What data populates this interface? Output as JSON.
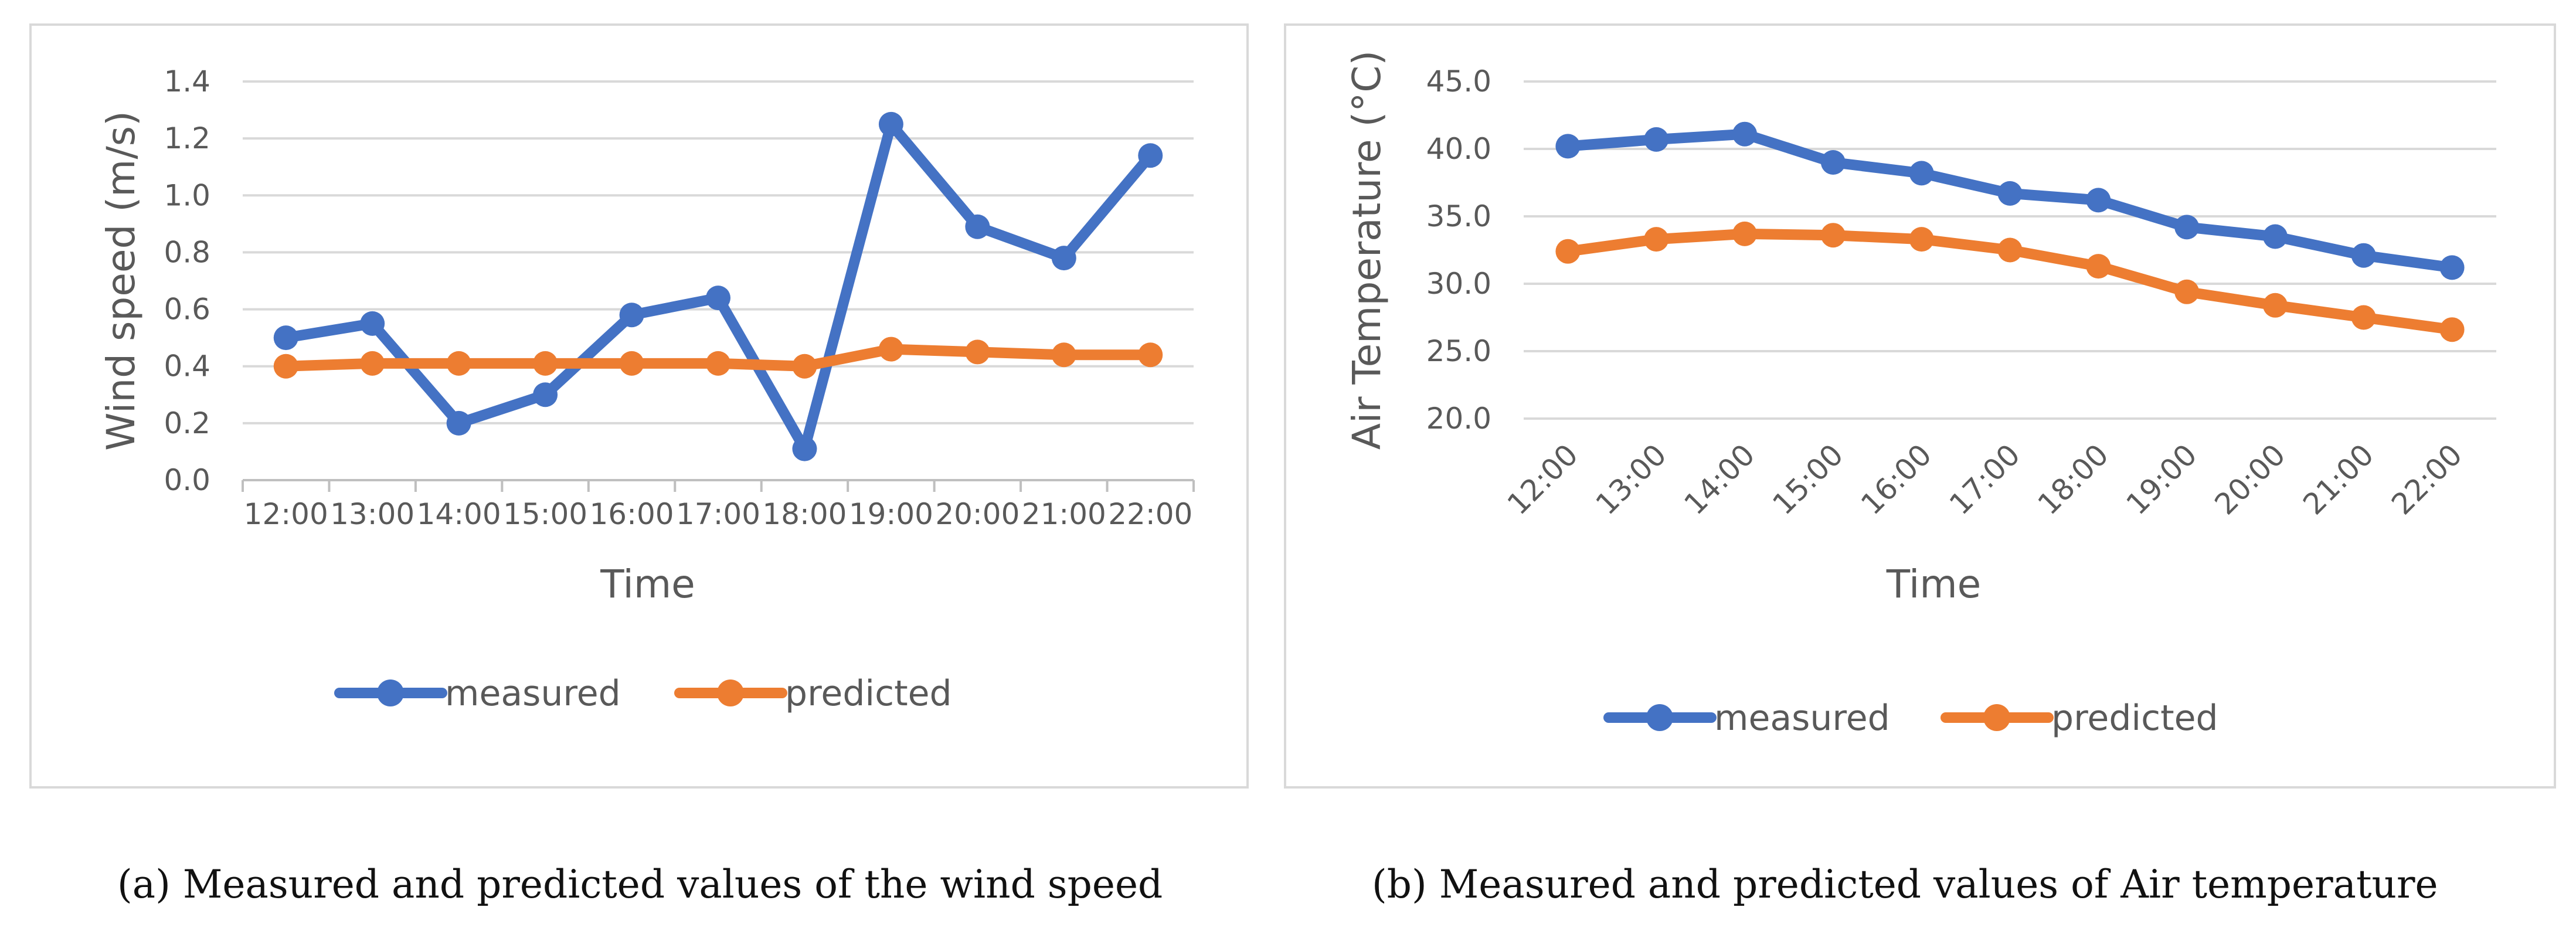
{
  "chart_data": [
    {
      "type": "line",
      "title": "",
      "xlabel": "Time",
      "ylabel": "Wind speed (m/s)",
      "categories": [
        "12:00",
        "13:00",
        "14:00",
        "15:00",
        "16:00",
        "17:00",
        "18:00",
        "19:00",
        "20:00",
        "21:00",
        "22:00"
      ],
      "ylim": [
        0,
        1.4
      ],
      "yticks": [
        "0.0",
        "0.2",
        "0.4",
        "0.6",
        "0.8",
        "1.0",
        "1.2",
        "1.4"
      ],
      "grid": true,
      "legend_position": "bottom",
      "series": [
        {
          "name": "measured",
          "color": "#4472C4",
          "values": [
            0.5,
            0.55,
            0.2,
            0.3,
            0.58,
            0.64,
            0.11,
            1.25,
            0.89,
            0.78,
            1.14
          ]
        },
        {
          "name": "predicted",
          "color": "#ED7D31",
          "values": [
            0.4,
            0.41,
            0.41,
            0.41,
            0.41,
            0.41,
            0.4,
            0.46,
            0.45,
            0.44,
            0.44
          ]
        }
      ]
    },
    {
      "type": "line",
      "title": "",
      "xlabel": "Time",
      "ylabel": "Air Temperature (°C)",
      "categories": [
        "12:00",
        "13:00",
        "14:00",
        "15:00",
        "16:00",
        "17:00",
        "18:00",
        "19:00",
        "20:00",
        "21:00",
        "22:00"
      ],
      "ylim": [
        20,
        45
      ],
      "yticks": [
        "20.0",
        "25.0",
        "30.0",
        "35.0",
        "40.0",
        "45.0"
      ],
      "grid": true,
      "legend_position": "bottom",
      "series": [
        {
          "name": "measured",
          "color": "#4472C4",
          "values": [
            40.2,
            40.7,
            41.1,
            39.0,
            38.2,
            36.7,
            36.2,
            34.2,
            33.5,
            32.1,
            31.2
          ]
        },
        {
          "name": "predicted",
          "color": "#ED7D31",
          "values": [
            32.4,
            33.3,
            33.7,
            33.6,
            33.3,
            32.5,
            31.3,
            29.4,
            28.4,
            27.5,
            26.6
          ]
        }
      ]
    }
  ],
  "captions": {
    "a": "(a) Measured and predicted values of the wind speed",
    "b": "(b) Measured and predicted values of Air temperature"
  }
}
